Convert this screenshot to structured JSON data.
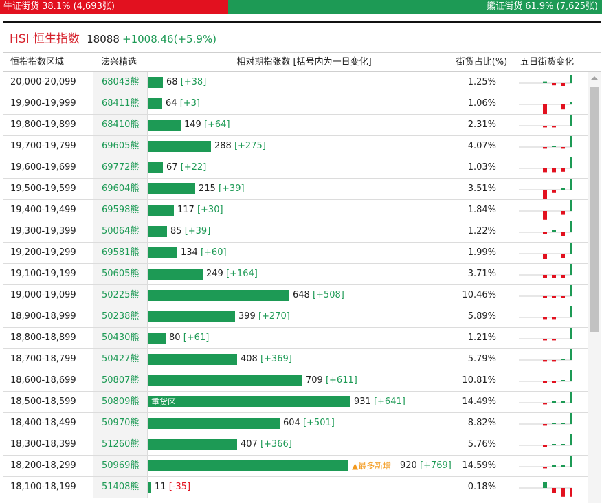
{
  "summary": {
    "bull_label": "牛证街货 38.1% (4,693张)",
    "bear_label": "熊证街货 61.9% (7,625张)",
    "bull_share": 0.381,
    "colors": {
      "bull": "#e2111f",
      "bear": "#1d9a55"
    }
  },
  "index": {
    "name": "HSI 恒生指数",
    "price": "18088",
    "change": "+1008.46(+5.9%)"
  },
  "table": {
    "headers": [
      "恒指指数区域",
      "法兴精选",
      "相对期指张数 [括号内为一日变化]",
      "街货占比(%)",
      "五日街货变化"
    ],
    "hot_label": "重货区",
    "most_new_label": "▲最多新增",
    "rows": [
      {
        "range": "20,000-20,099",
        "code": "68043熊",
        "count": "68",
        "delta": "[+38]",
        "delta_value": 38,
        "share": "1.25%",
        "contracts": 68,
        "spark": [
          0,
          0.3,
          -0.4,
          -0.5,
          1.5
        ]
      },
      {
        "range": "19,900-19,999",
        "code": "68411熊",
        "count": "64",
        "delta": "[+3]",
        "delta_value": 3,
        "share": "1.06%",
        "contracts": 64,
        "spark": [
          0,
          -2.4,
          0,
          -0.9,
          0.5
        ]
      },
      {
        "range": "19,800-19,899",
        "code": "68410熊",
        "count": "149",
        "delta": "[+64]",
        "delta_value": 64,
        "share": "2.31%",
        "contracts": 149,
        "spark": [
          0,
          -0.3,
          -0.3,
          0,
          2
        ]
      },
      {
        "range": "19,700-19,799",
        "code": "69605熊",
        "count": "288",
        "delta": "[+275]",
        "delta_value": 275,
        "share": "4.07%",
        "contracts": 288,
        "spark": [
          0,
          -0.3,
          0.2,
          -0.3,
          2
        ]
      },
      {
        "range": "19,600-19,699",
        "code": "69772熊",
        "count": "67",
        "delta": "[+22]",
        "delta_value": 22,
        "share": "1.03%",
        "contracts": 67,
        "spark": [
          0,
          -0.8,
          -0.8,
          -0.6,
          2
        ]
      },
      {
        "range": "19,500-19,599",
        "code": "69604熊",
        "count": "215",
        "delta": "[+39]",
        "delta_value": 39,
        "share": "3.51%",
        "contracts": 215,
        "spark": [
          0,
          -1.8,
          -0.6,
          0.3,
          2
        ]
      },
      {
        "range": "19,400-19,499",
        "code": "69598熊",
        "count": "117",
        "delta": "[+30]",
        "delta_value": 30,
        "share": "1.84%",
        "contracts": 117,
        "spark": [
          0,
          -1.6,
          0,
          -0.7,
          2
        ]
      },
      {
        "range": "19,300-19,399",
        "code": "50064熊",
        "count": "85",
        "delta": "[+39]",
        "delta_value": 39,
        "share": "1.22%",
        "contracts": 85,
        "spark": [
          0,
          -0.3,
          0.5,
          -0.7,
          2
        ]
      },
      {
        "range": "19,200-19,299",
        "code": "69581熊",
        "count": "134",
        "delta": "[+60]",
        "delta_value": 60,
        "share": "1.99%",
        "contracts": 134,
        "spark": [
          0,
          -1,
          0,
          -0.8,
          2
        ]
      },
      {
        "range": "19,100-19,199",
        "code": "50605熊",
        "count": "249",
        "delta": "[+164]",
        "delta_value": 164,
        "share": "3.71%",
        "contracts": 249,
        "spark": [
          0,
          -0.6,
          -0.6,
          -0.6,
          2
        ]
      },
      {
        "range": "19,000-19,099",
        "code": "50225熊",
        "count": "648",
        "delta": "[+508]",
        "delta_value": 508,
        "share": "10.46%",
        "contracts": 648,
        "spark": [
          0,
          -0.3,
          -0.3,
          -0.3,
          2
        ]
      },
      {
        "range": "18,900-18,999",
        "code": "50238熊",
        "count": "399",
        "delta": "[+270]",
        "delta_value": 270,
        "share": "5.89%",
        "contracts": 399,
        "spark": [
          0,
          -0.3,
          -0.3,
          0,
          2
        ]
      },
      {
        "range": "18,800-18,899",
        "code": "50430熊",
        "count": "80",
        "delta": "[+61]",
        "delta_value": 61,
        "share": "1.21%",
        "contracts": 80,
        "spark": [
          0,
          -0.3,
          -0.3,
          0,
          2
        ]
      },
      {
        "range": "18,700-18,799",
        "code": "50427熊",
        "count": "408",
        "delta": "[+369]",
        "delta_value": 369,
        "share": "5.79%",
        "contracts": 408,
        "spark": [
          0,
          -0.3,
          -0.3,
          0.2,
          2
        ]
      },
      {
        "range": "18,600-18,699",
        "code": "50807熊",
        "count": "709",
        "delta": "[+611]",
        "delta_value": 611,
        "share": "10.81%",
        "contracts": 709,
        "spark": [
          0,
          -0.3,
          -0.3,
          0.2,
          2
        ]
      },
      {
        "range": "18,500-18,599",
        "code": "50809熊",
        "count": "931",
        "delta": "[+641]",
        "delta_value": 641,
        "share": "14.49%",
        "contracts": 931,
        "spark": [
          0,
          -0.3,
          0.2,
          0.2,
          2
        ],
        "hot": true
      },
      {
        "range": "18,400-18,499",
        "code": "50970熊",
        "count": "604",
        "delta": "[+501]",
        "delta_value": 501,
        "share": "8.82%",
        "contracts": 604,
        "spark": [
          0,
          -0.3,
          0.2,
          0.2,
          2
        ]
      },
      {
        "range": "18,300-18,399",
        "code": "51260熊",
        "count": "407",
        "delta": "[+366]",
        "delta_value": 366,
        "share": "5.76%",
        "contracts": 407,
        "spark": [
          0,
          -0.3,
          0.2,
          0.2,
          2
        ]
      },
      {
        "range": "18,200-18,299",
        "code": "50969熊",
        "count": "920",
        "delta": "[+769]",
        "delta_value": 769,
        "share": "14.59%",
        "contracts": 920,
        "spark": [
          0,
          -0.3,
          0.2,
          0.3,
          2
        ],
        "most_new": true
      },
      {
        "range": "18,100-18,199",
        "code": "51408熊",
        "count": "11",
        "delta": "[-35]",
        "delta_value": -35,
        "share": "0.18%",
        "contracts": 11,
        "spark": [
          0,
          1,
          -1,
          -1.6,
          -1.6
        ]
      }
    ]
  }
}
